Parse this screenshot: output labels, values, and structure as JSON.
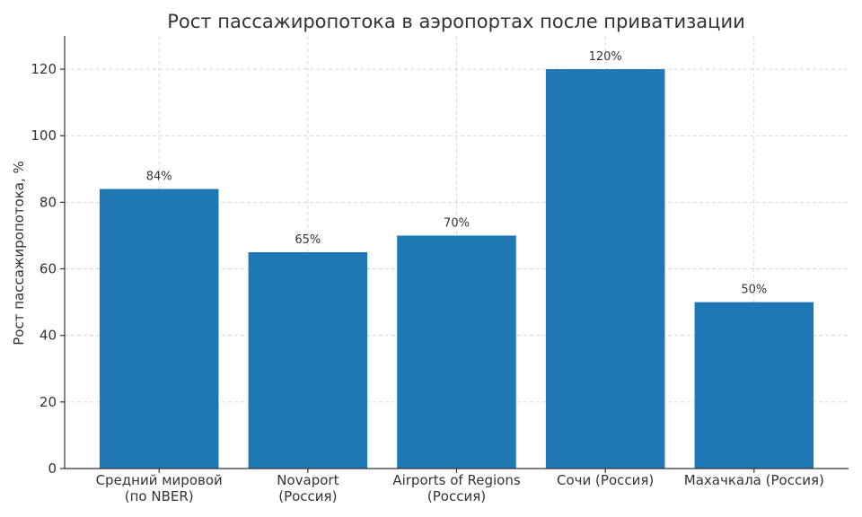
{
  "chart_data": {
    "type": "bar",
    "title": "Рост пассажиропотока в аэропортах после приватизации",
    "xlabel": "",
    "ylabel": "Рост пассажиропотока, %",
    "categories": [
      [
        "Средний мировой",
        "(по NBER)"
      ],
      [
        "Novaport",
        "(Россия)"
      ],
      [
        "Airports of Regions",
        "(Россия)"
      ],
      [
        "Сочи (Россия)"
      ],
      [
        "Махачкала (Россия)"
      ]
    ],
    "values": [
      84,
      65,
      70,
      120,
      50
    ],
    "value_labels": [
      "84%",
      "65%",
      "70%",
      "120%",
      "50%"
    ],
    "ylim": [
      0,
      130
    ],
    "yticks": [
      0,
      20,
      40,
      60,
      80,
      100,
      120
    ],
    "grid": true,
    "bar_color": "#1f77b4"
  }
}
